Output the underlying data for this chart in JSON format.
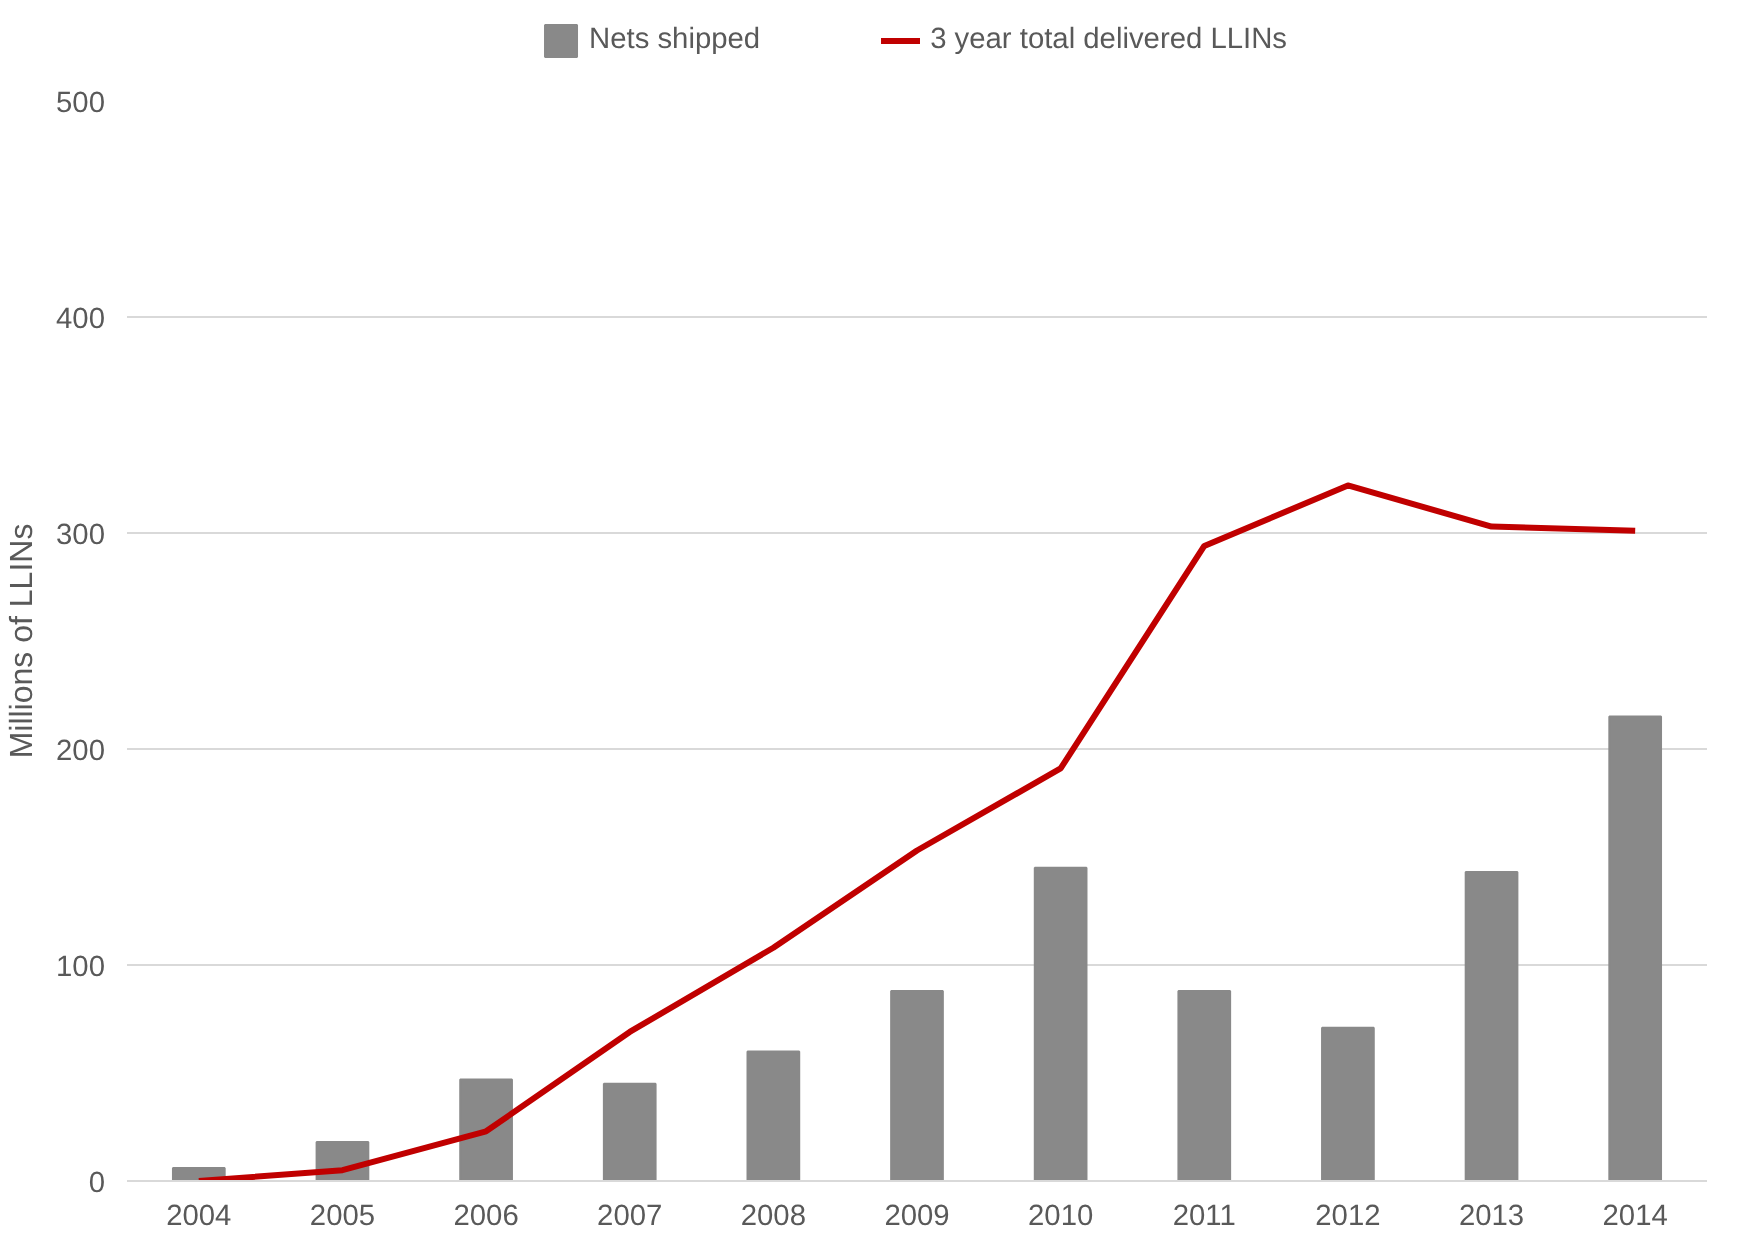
{
  "chart_data": {
    "type": "bar",
    "ylabel": "Millions of LLINs",
    "categories": [
      "2004",
      "2005",
      "2006",
      "2007",
      "2008",
      "2009",
      "2010",
      "2011",
      "2012",
      "2013",
      "2014"
    ],
    "series": [
      {
        "name": "Nets shipped",
        "type": "bar",
        "color": "#898989",
        "values": [
          6,
          18,
          47,
          45,
          60,
          88,
          145,
          88,
          71,
          143,
          215
        ]
      },
      {
        "name": "3 year total delivered LLINs",
        "type": "line",
        "color": "#c00000",
        "values": [
          0,
          5,
          23,
          69,
          108,
          153,
          191,
          294,
          322,
          303,
          301
        ]
      }
    ],
    "ylim": [
      0,
      500
    ],
    "yticks": [
      0,
      100,
      200,
      300,
      400,
      500
    ],
    "grid": "y",
    "legend": "top",
    "marker": "none",
    "line_style": "solid"
  }
}
